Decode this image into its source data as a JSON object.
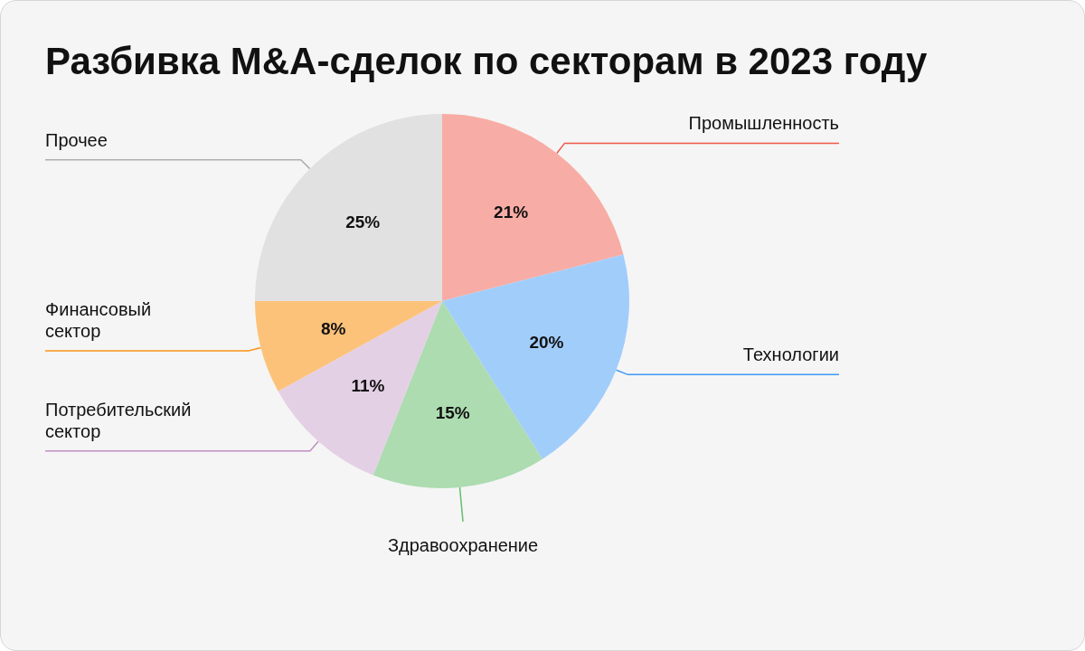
{
  "chart_data": {
    "type": "pie",
    "title": "Разбивка M&A-сделок по секторам в 2023 году",
    "categories": [
      "Промышленность",
      "Технологии",
      "Здравоохранение",
      "Потребительский сектор",
      "Финансовый сектор",
      "Прочее"
    ],
    "values": [
      21,
      20,
      15,
      11,
      8,
      25
    ],
    "colors": [
      "#f7ada5",
      "#a1cdfb",
      "#acdcb0",
      "#e4d0e5",
      "#fdc27a",
      "#e1e1e1"
    ],
    "value_labels": [
      "21%",
      "20%",
      "15%",
      "11%",
      "8%",
      "25%"
    ]
  }
}
